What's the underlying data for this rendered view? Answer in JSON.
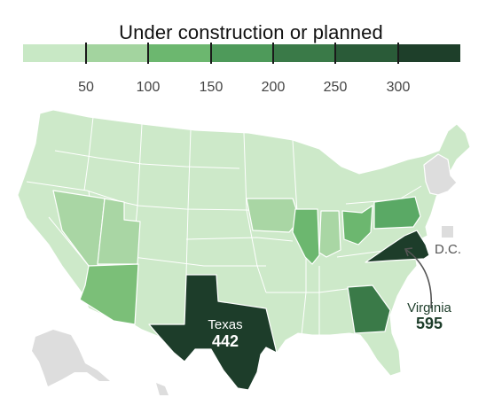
{
  "legend": {
    "title": "Under construction or planned",
    "ticks": [
      "50",
      "100",
      "150",
      "200",
      "250",
      "300"
    ],
    "colors": [
      "#c8e8c5",
      "#a3d49f",
      "#6cb76f",
      "#4e9a5a",
      "#3a7a48",
      "#2a5b38",
      "#1e3f2a"
    ]
  },
  "labels": {
    "texas_name": "Texas",
    "texas_value": "442",
    "virginia_name": "Virginia",
    "virginia_value": "595",
    "dc": "D.C."
  },
  "colors": {
    "no_data": "#dddddd",
    "lightest": "#cde9c9",
    "light_mid": "#a9d6a4",
    "mid": "#7bbf78",
    "mid_dark": "#5aa965",
    "dark": "#1d3d2a",
    "annotation": "#555555"
  }
}
